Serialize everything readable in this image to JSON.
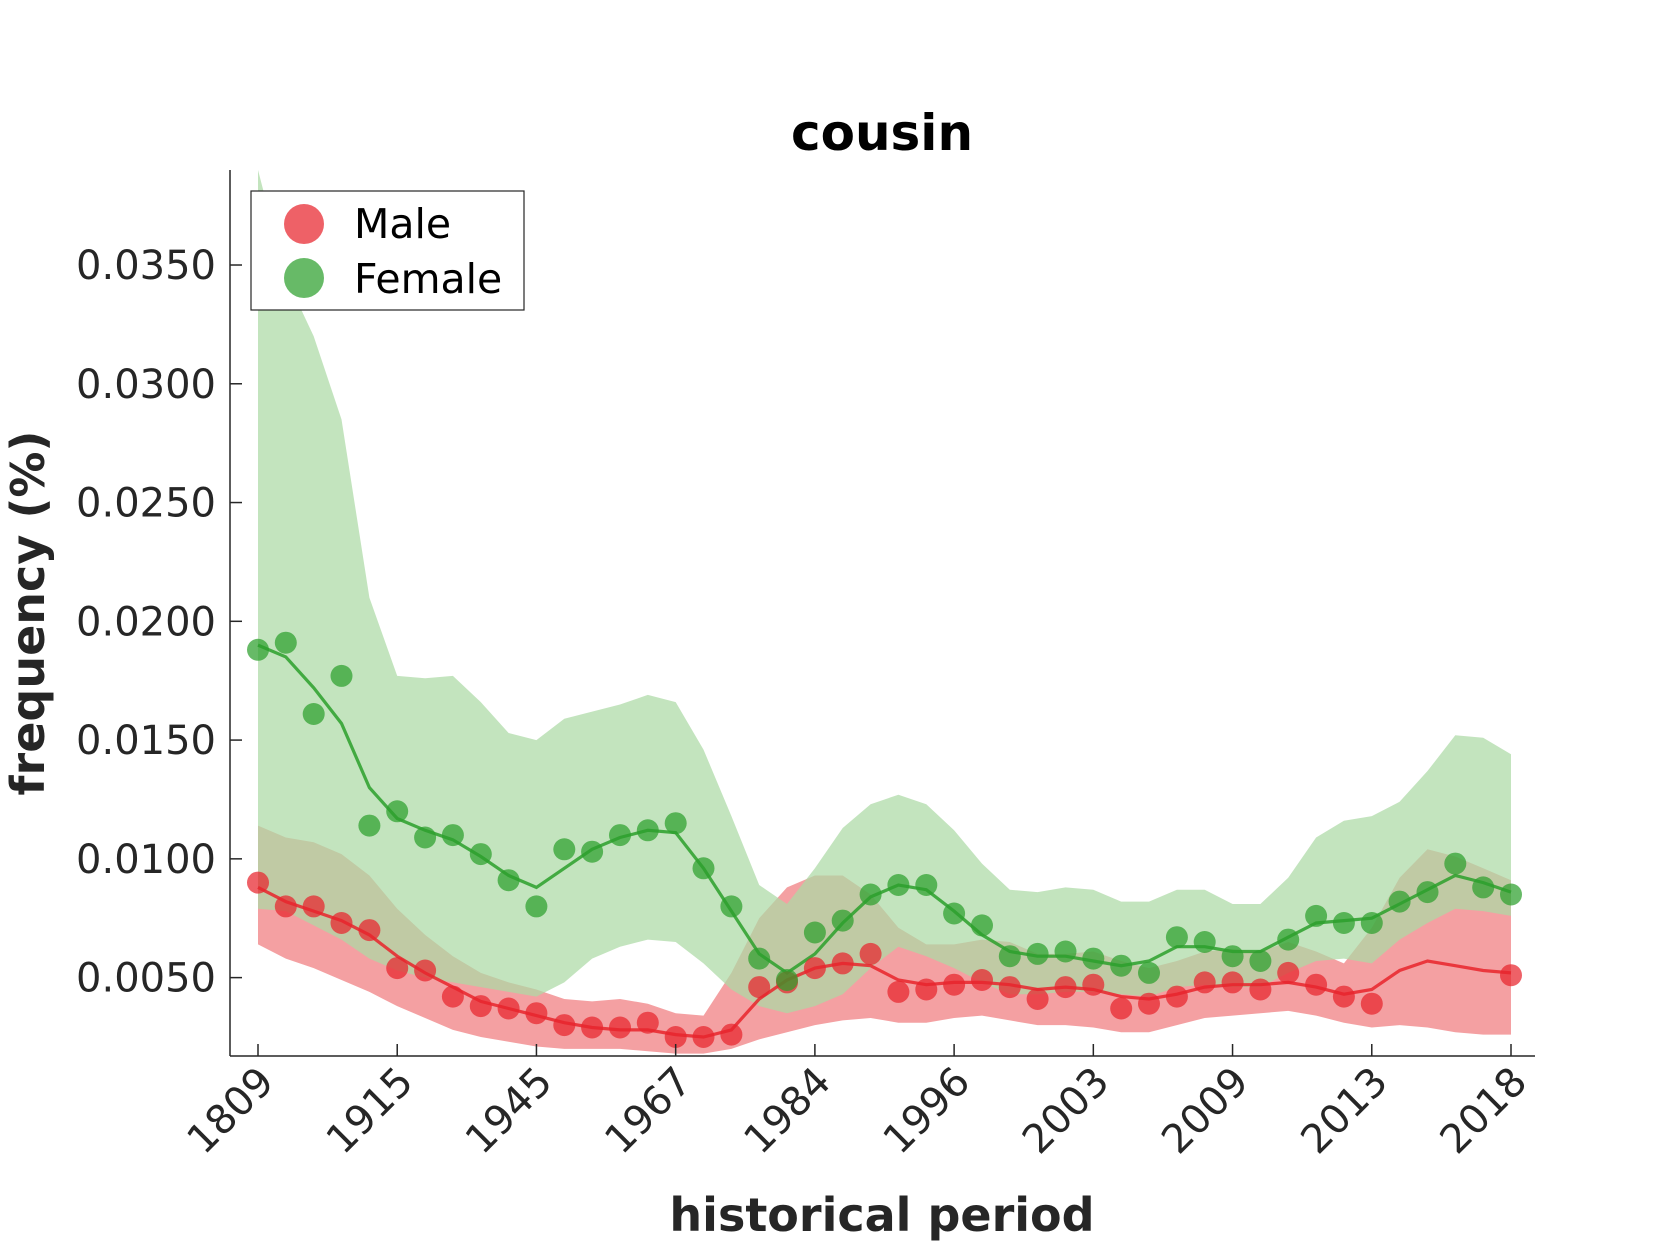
{
  "chart_data": {
    "type": "line",
    "title": "cousin",
    "xlabel": "historical period",
    "ylabel": "frequency (%)",
    "x_tick_labels": [
      "1809",
      "1915",
      "1945",
      "1967",
      "1984",
      "1996",
      "2003",
      "2009",
      "2013",
      "2018"
    ],
    "y_tick_labels": [
      "0.0050",
      "0.0100",
      "0.0150",
      "0.0200",
      "0.0250",
      "0.0300",
      "0.0350"
    ],
    "y_ticks": [
      0.005,
      0.01,
      0.015,
      0.02,
      0.025,
      0.03,
      0.035
    ],
    "ylim": [
      0.0017,
      0.039
    ],
    "x_index_range": [
      0,
      45
    ],
    "x_tick_indices": [
      0,
      5,
      10,
      15,
      20,
      25,
      30,
      35,
      40,
      45
    ],
    "legend_position": "top-left",
    "grid": false,
    "series": [
      {
        "name": "Male",
        "color": "#e8242c",
        "band_color": "#f4a0a2",
        "points": [
          0.009,
          0.008,
          0.008,
          0.0073,
          0.007,
          0.0054,
          0.0053,
          0.0042,
          0.0038,
          0.0037,
          0.0035,
          0.003,
          0.0029,
          0.0029,
          0.0031,
          0.0025,
          0.0025,
          0.0026,
          0.0046,
          0.0048,
          0.0054,
          0.0056,
          0.006,
          0.0044,
          0.0045,
          0.0047,
          0.0049,
          0.0046,
          0.0041,
          0.0046,
          0.0047,
          0.0037,
          0.0039,
          0.0042,
          0.0048,
          0.0048,
          0.0045,
          0.0052,
          0.0047,
          0.0042,
          0.0039,
          null,
          null,
          null,
          null,
          0.0051
        ],
        "smooth": [
          0.0088,
          0.0082,
          0.0078,
          0.0074,
          0.0068,
          0.0059,
          0.0052,
          0.0046,
          0.004,
          0.0037,
          0.0034,
          0.0031,
          0.0029,
          0.0028,
          0.0028,
          0.0026,
          0.0025,
          0.0028,
          0.0041,
          0.0049,
          0.0054,
          0.0056,
          0.0055,
          0.0049,
          0.0047,
          0.0048,
          0.0048,
          0.0047,
          0.0045,
          0.0046,
          0.0045,
          0.0042,
          0.0041,
          0.0043,
          0.0046,
          0.0047,
          0.0047,
          0.0048,
          0.0046,
          0.0043,
          0.0045,
          0.0053,
          0.0057,
          0.0055,
          0.0053,
          0.0052
        ],
        "band_upper": [
          0.0114,
          0.0109,
          0.0107,
          0.0102,
          0.0093,
          0.0079,
          0.0068,
          0.0059,
          0.0052,
          0.0048,
          0.0045,
          0.0041,
          0.004,
          0.0041,
          0.0039,
          0.0035,
          0.0034,
          0.0052,
          0.0075,
          0.0088,
          0.0093,
          0.0093,
          0.0085,
          0.0071,
          0.0064,
          0.0064,
          0.0066,
          0.0065,
          0.006,
          0.006,
          0.0061,
          0.0057,
          0.0054,
          0.0057,
          0.0061,
          0.0062,
          0.0061,
          0.0065,
          0.0061,
          0.0056,
          0.0071,
          0.0092,
          0.0104,
          0.0101,
          0.0096,
          0.0091
        ],
        "band_lower": [
          0.0064,
          0.0058,
          0.0054,
          0.0049,
          0.0044,
          0.0038,
          0.0033,
          0.0028,
          0.0025,
          0.0023,
          0.0021,
          0.002,
          0.002,
          0.002,
          0.0019,
          0.0018,
          0.0018,
          0.002,
          0.0024,
          0.0027,
          0.003,
          0.0032,
          0.0033,
          0.0031,
          0.0031,
          0.0033,
          0.0034,
          0.0032,
          0.003,
          0.003,
          0.0029,
          0.0027,
          0.0027,
          0.003,
          0.0033,
          0.0034,
          0.0035,
          0.0036,
          0.0034,
          0.0031,
          0.0029,
          0.003,
          0.0029,
          0.0027,
          0.0026,
          0.0026
        ]
      },
      {
        "name": "Female",
        "color": "#2ca02c",
        "band_color": "#acd9a5",
        "points": [
          0.0188,
          0.0191,
          0.0161,
          0.0177,
          0.0114,
          0.012,
          0.0109,
          0.011,
          0.0102,
          0.0091,
          0.008,
          0.0104,
          0.0103,
          0.011,
          0.0112,
          0.0115,
          0.0096,
          0.008,
          0.0058,
          0.0049,
          0.0069,
          0.0074,
          0.0085,
          0.0089,
          0.0089,
          0.0077,
          0.0072,
          0.0059,
          0.006,
          0.0061,
          0.0058,
          0.0055,
          0.0052,
          0.0067,
          0.0065,
          0.0059,
          0.0057,
          0.0066,
          0.0076,
          0.0073,
          0.0073,
          0.0082,
          0.0086,
          0.0098,
          0.0088,
          0.0085
        ],
        "smooth": [
          0.019,
          0.0185,
          0.0172,
          0.0157,
          0.013,
          0.0117,
          0.0112,
          0.0108,
          0.0101,
          0.0093,
          0.0088,
          0.0096,
          0.0104,
          0.0109,
          0.0112,
          0.0111,
          0.0096,
          0.0078,
          0.006,
          0.0052,
          0.006,
          0.0073,
          0.0084,
          0.0089,
          0.0087,
          0.0078,
          0.0068,
          0.0061,
          0.0059,
          0.0059,
          0.0057,
          0.0055,
          0.0057,
          0.0063,
          0.0063,
          0.0061,
          0.0061,
          0.0067,
          0.0073,
          0.0074,
          0.0075,
          0.0081,
          0.0087,
          0.0093,
          0.009,
          0.0086
        ],
        "band_upper": [
          0.039,
          0.0345,
          0.032,
          0.0285,
          0.021,
          0.0177,
          0.0176,
          0.0177,
          0.0166,
          0.0153,
          0.015,
          0.0159,
          0.0162,
          0.0165,
          0.0169,
          0.0166,
          0.0146,
          0.0118,
          0.0089,
          0.0081,
          0.0096,
          0.0113,
          0.0123,
          0.0127,
          0.0123,
          0.0112,
          0.0098,
          0.0087,
          0.0086,
          0.0088,
          0.0087,
          0.0082,
          0.0082,
          0.0087,
          0.0087,
          0.0081,
          0.0081,
          0.0092,
          0.0109,
          0.0116,
          0.0118,
          0.0124,
          0.0137,
          0.0152,
          0.0151,
          0.0144
        ],
        "band_lower": [
          0.0079,
          0.0078,
          0.0072,
          0.0066,
          0.0058,
          0.0053,
          0.005,
          0.0048,
          0.0046,
          0.0044,
          0.0042,
          0.0048,
          0.0058,
          0.0063,
          0.0066,
          0.0065,
          0.0056,
          0.0045,
          0.0038,
          0.0035,
          0.0038,
          0.0043,
          0.0054,
          0.0063,
          0.0059,
          0.0054,
          0.0048,
          0.0043,
          0.0043,
          0.0044,
          0.0044,
          0.0043,
          0.0042,
          0.0046,
          0.0047,
          0.0046,
          0.0046,
          0.0052,
          0.0057,
          0.0058,
          0.0056,
          0.0066,
          0.0073,
          0.0079,
          0.0078,
          0.0076
        ]
      }
    ]
  }
}
